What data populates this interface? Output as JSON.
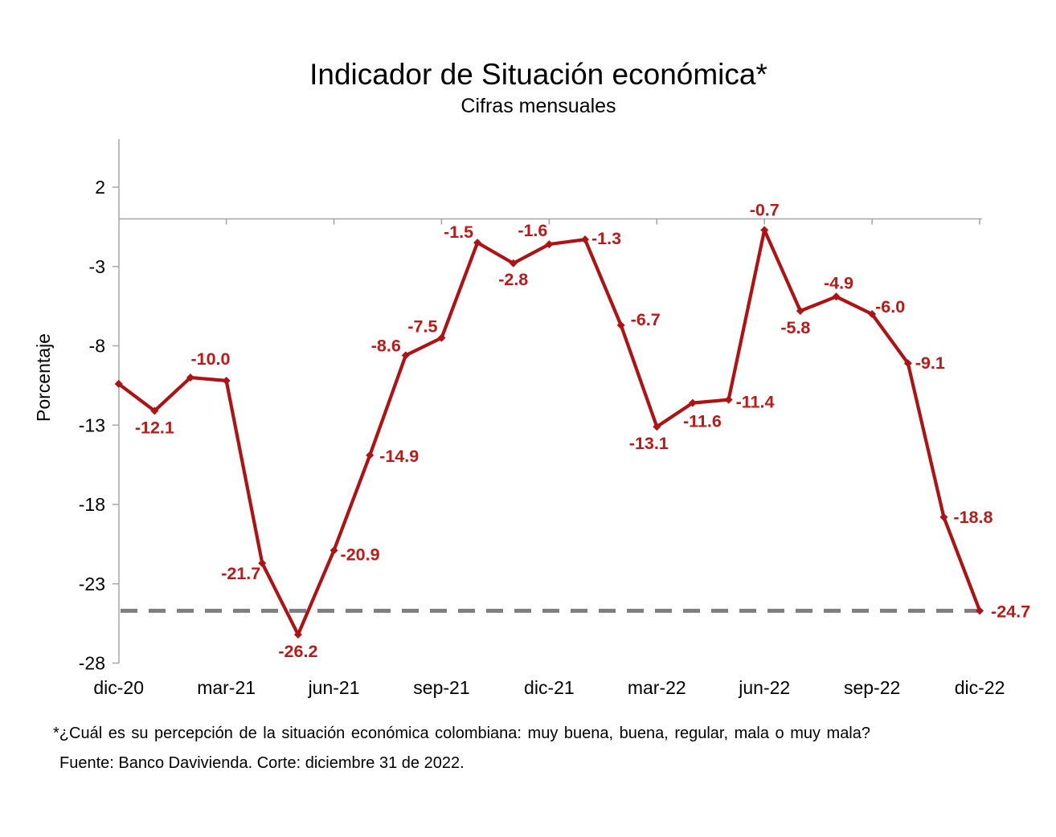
{
  "page": {
    "title": "Indicador de Situación económica*",
    "subtitle": "Cifras mensuales"
  },
  "footnotes": {
    "question": "*¿Cuál es su percepción de la situación económica colombiana: muy buena, buena, regular, mala  o muy mala?",
    "source": "Fuente: Banco Davivienda. Corte: diciembre 31 de 2022."
  },
  "chart_data": {
    "type": "line",
    "title": "Indicador de Situación económica*",
    "subtitle": "Cifras mensuales",
    "xlabel": "",
    "ylabel": "Porcentaje",
    "ylim": [
      -28,
      5
    ],
    "grid": "off",
    "legend": "none",
    "marker": "diamond",
    "y_ticks": [
      2,
      -3,
      -8,
      -13,
      -18,
      -23,
      -28
    ],
    "x_axis_tick_labels": [
      "dic-20",
      "mar-21",
      "jun-21",
      "sep-21",
      "dic-21",
      "mar-22",
      "jun-22",
      "sep-22",
      "dic-22"
    ],
    "x": [
      "dic-20",
      "ene-21",
      "feb-21",
      "mar-21",
      "abr-21",
      "may-21",
      "jun-21",
      "jul-21",
      "ago-21",
      "sep-21",
      "oct-21",
      "nov-21",
      "dic-21",
      "ene-22",
      "feb-22",
      "mar-22",
      "abr-22",
      "may-22",
      "jun-22",
      "jul-22",
      "ago-22",
      "sep-22",
      "oct-22",
      "nov-22",
      "dic-22"
    ],
    "series": [
      {
        "name": "Indicador de Situación económica",
        "values": [
          -10.4,
          -12.1,
          -10.0,
          -10.2,
          -21.7,
          -26.2,
          -20.9,
          -14.9,
          -8.6,
          -7.5,
          -1.5,
          -2.8,
          -1.6,
          -1.3,
          -6.7,
          -13.1,
          -11.6,
          -11.4,
          -0.7,
          -5.8,
          -4.9,
          -6.0,
          -9.1,
          -18.8,
          -24.7
        ],
        "point_labels": [
          "",
          "-12.1",
          "-10.0",
          "",
          "-21.7",
          "-26.2",
          "-20.9",
          "-14.9",
          "-8.6",
          "-7.5",
          "-1.5",
          "-2.8",
          "-1.6",
          "-1.3",
          "-6.7",
          "-13.1",
          "-11.6",
          "-11.4",
          "-0.7",
          "-5.8",
          "-4.9",
          "-6.0",
          "-9.1",
          "-18.8",
          "-24.7"
        ]
      }
    ],
    "label_offsets": [
      null,
      [
        0,
        28,
        "middle"
      ],
      [
        25,
        -16,
        "middle"
      ],
      null,
      [
        -2,
        20,
        "end"
      ],
      [
        0,
        28,
        "middle"
      ],
      [
        8,
        12,
        "start"
      ],
      [
        12,
        8,
        "start"
      ],
      [
        -6,
        -5,
        "end"
      ],
      [
        -5,
        -7,
        "end"
      ],
      [
        -5,
        -6,
        "end"
      ],
      [
        0,
        27,
        "middle"
      ],
      [
        -2,
        -10,
        "end"
      ],
      [
        8,
        6,
        "start"
      ],
      [
        12,
        0,
        "start"
      ],
      [
        -10,
        28,
        "middle"
      ],
      [
        12,
        30,
        "middle"
      ],
      [
        9,
        10,
        "start"
      ],
      [
        0,
        -18,
        "middle"
      ],
      [
        -6,
        28,
        "middle"
      ],
      [
        3,
        -10,
        "middle"
      ],
      [
        4,
        -2,
        "start"
      ],
      [
        9,
        7,
        "start"
      ],
      [
        12,
        7,
        "start"
      ],
      [
        14,
        8,
        "start"
      ]
    ],
    "reference_lines": [
      {
        "name": "zero-line",
        "value": 0,
        "style": "solid"
      },
      {
        "name": "latest-value-line",
        "value": -24.7,
        "style": "dashed"
      }
    ],
    "colors": {
      "line": "#B01213",
      "point_labels": "#BE1817",
      "axis": "#ABABAB",
      "zero_line": "#A6A6A6",
      "dashed_line": "#7E7E7E",
      "tick_text": "#000000"
    }
  }
}
